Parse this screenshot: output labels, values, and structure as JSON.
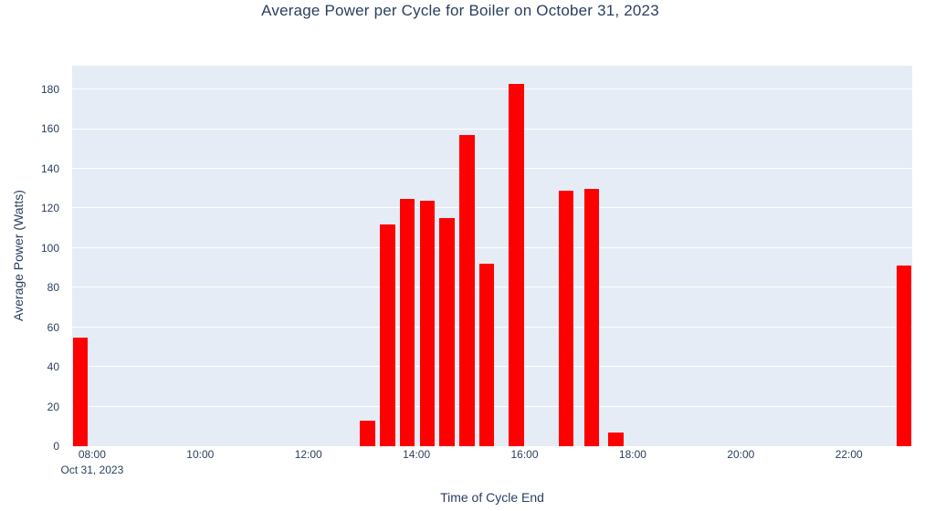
{
  "chart_data": {
    "type": "bar",
    "title": "Average Power per Cycle for Boiler on October 31, 2023",
    "xlabel": "Time of Cycle End",
    "ylabel": "Average Power (Watts)",
    "x_axis_date_label": "Oct 31, 2023",
    "legend": "none",
    "grid": "horizontal-white-on-light-panel",
    "x_range_hours": [
      7.63,
      23.17
    ],
    "y_range": [
      0,
      192
    ],
    "bar_width_hours": 0.282,
    "y_ticks": [
      0,
      20,
      40,
      60,
      80,
      100,
      120,
      140,
      160,
      180
    ],
    "x_ticks": [
      {
        "hour": 8,
        "label": "08:00",
        "sublabel": "Oct 31, 2023"
      },
      {
        "hour": 10,
        "label": "10:00"
      },
      {
        "hour": 12,
        "label": "12:00"
      },
      {
        "hour": 14,
        "label": "14:00"
      },
      {
        "hour": 16,
        "label": "16:00"
      },
      {
        "hour": 18,
        "label": "18:00"
      },
      {
        "hour": 20,
        "label": "20:00"
      },
      {
        "hour": 22,
        "label": "22:00"
      }
    ],
    "bars": [
      {
        "time_hours": 7.78,
        "watts": 55
      },
      {
        "time_hours": 13.09,
        "watts": 13
      },
      {
        "time_hours": 13.47,
        "watts": 112
      },
      {
        "time_hours": 13.83,
        "watts": 125
      },
      {
        "time_hours": 14.2,
        "watts": 124
      },
      {
        "time_hours": 14.56,
        "watts": 115
      },
      {
        "time_hours": 14.93,
        "watts": 157
      },
      {
        "time_hours": 15.3,
        "watts": 92
      },
      {
        "time_hours": 15.85,
        "watts": 183
      },
      {
        "time_hours": 16.77,
        "watts": 129
      },
      {
        "time_hours": 17.24,
        "watts": 130
      },
      {
        "time_hours": 17.69,
        "watts": 7
      },
      {
        "time_hours": 23.02,
        "watts": 91
      }
    ],
    "colors": {
      "bar": "#ff0000",
      "plot_background": "#e5ecf6",
      "grid": "#ffffff",
      "text": "#2a3f5f"
    }
  }
}
